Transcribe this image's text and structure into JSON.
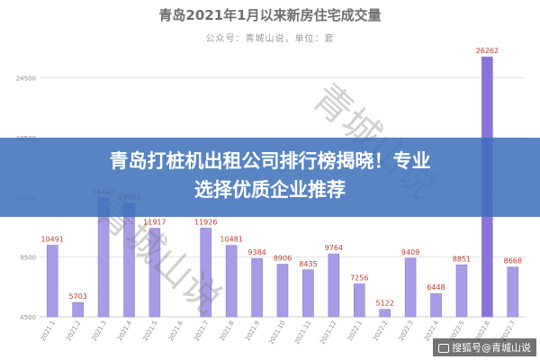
{
  "chart_data": {
    "type": "bar",
    "title": "青岛2021年1月以来新房住宅成交量",
    "subtitle": "公众号：青城山说，单位：套",
    "categories": [
      "2021.1",
      "2021.2",
      "2021.3",
      "2021.4",
      "2021.5",
      "2021.6",
      "2021.7",
      "2021.8",
      "2021.9",
      "2021.10",
      "2021.11",
      "2021.12",
      "2022.1",
      "2022.2",
      "2022.3",
      "2022.4",
      "2022.5",
      "2022.6",
      "2022.7"
    ],
    "values": [
      10491,
      5703,
      14445,
      13993,
      11917,
      null,
      11926,
      10481,
      9384,
      8906,
      8435,
      9764,
      7256,
      5122,
      9409,
      6448,
      8851,
      26262,
      8668
    ],
    "highlight_index": 17,
    "y_ticks": [
      4500,
      9500,
      14500,
      19500,
      24500
    ],
    "ylim": [
      4500,
      26500
    ],
    "grid": true,
    "colors": {
      "bar": "#a99be6",
      "bar_edge": "#8f7fd8",
      "highlight": "#8a72d9",
      "label": "#c0392b"
    }
  },
  "watermark": "青城山说",
  "banner": {
    "line1": "青岛打桩机出租公司排行榜揭晓！专业",
    "line2": "选择优质企业推荐"
  },
  "footer": {
    "text": "搜狐号@青城山说"
  }
}
